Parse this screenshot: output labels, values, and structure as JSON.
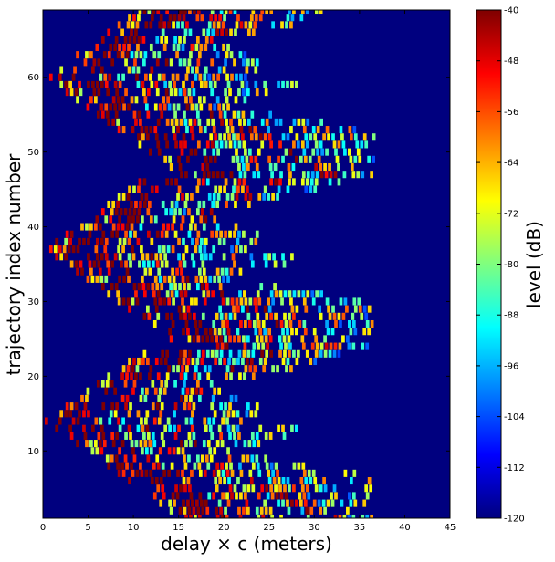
{
  "chart_data": {
    "type": "heatmap",
    "title": "",
    "xlabel": "delay $\\times$ c (meters)",
    "ylabel": "trajectory index number",
    "xlim": [
      0,
      45
    ],
    "ylim": [
      1,
      69
    ],
    "x_ticks": [
      0,
      5,
      10,
      15,
      20,
      25,
      30,
      35,
      40,
      45
    ],
    "y_ticks": [
      10,
      20,
      30,
      40,
      50,
      60
    ],
    "grid": false,
    "colormap": "jet",
    "background_color": "#00007f",
    "colorbar": {
      "label": "level (dB)",
      "range": [
        -120,
        -40
      ],
      "ticks": [
        -40,
        -48,
        -56,
        -64,
        -72,
        -80,
        -88,
        -96,
        -104,
        -112,
        -120
      ],
      "colors": [
        "#00007f",
        "#0000ff",
        "#007fff",
        "#00ffff",
        "#7fff7f",
        "#ffff00",
        "#ff7f00",
        "#ff0000",
        "#7f0000"
      ]
    },
    "blocks": [
      {
        "trajectory_range": [
          1,
          23
        ],
        "direct_path_min_delay_at_center": 0.2,
        "center_trajectory": 14,
        "max_delay_extent": 36.5,
        "peak_level_db": -40
      },
      {
        "trajectory_range": [
          24,
          46
        ],
        "direct_path_min_delay_at_center": 0.2,
        "center_trajectory": 37,
        "max_delay_extent": 36.5,
        "peak_level_db": -40
      },
      {
        "trajectory_range": [
          47,
          69
        ],
        "direct_path_min_delay_at_center": 0.2,
        "center_trajectory": 60,
        "max_delay_extent": 36.5,
        "peak_level_db": -40
      }
    ]
  }
}
